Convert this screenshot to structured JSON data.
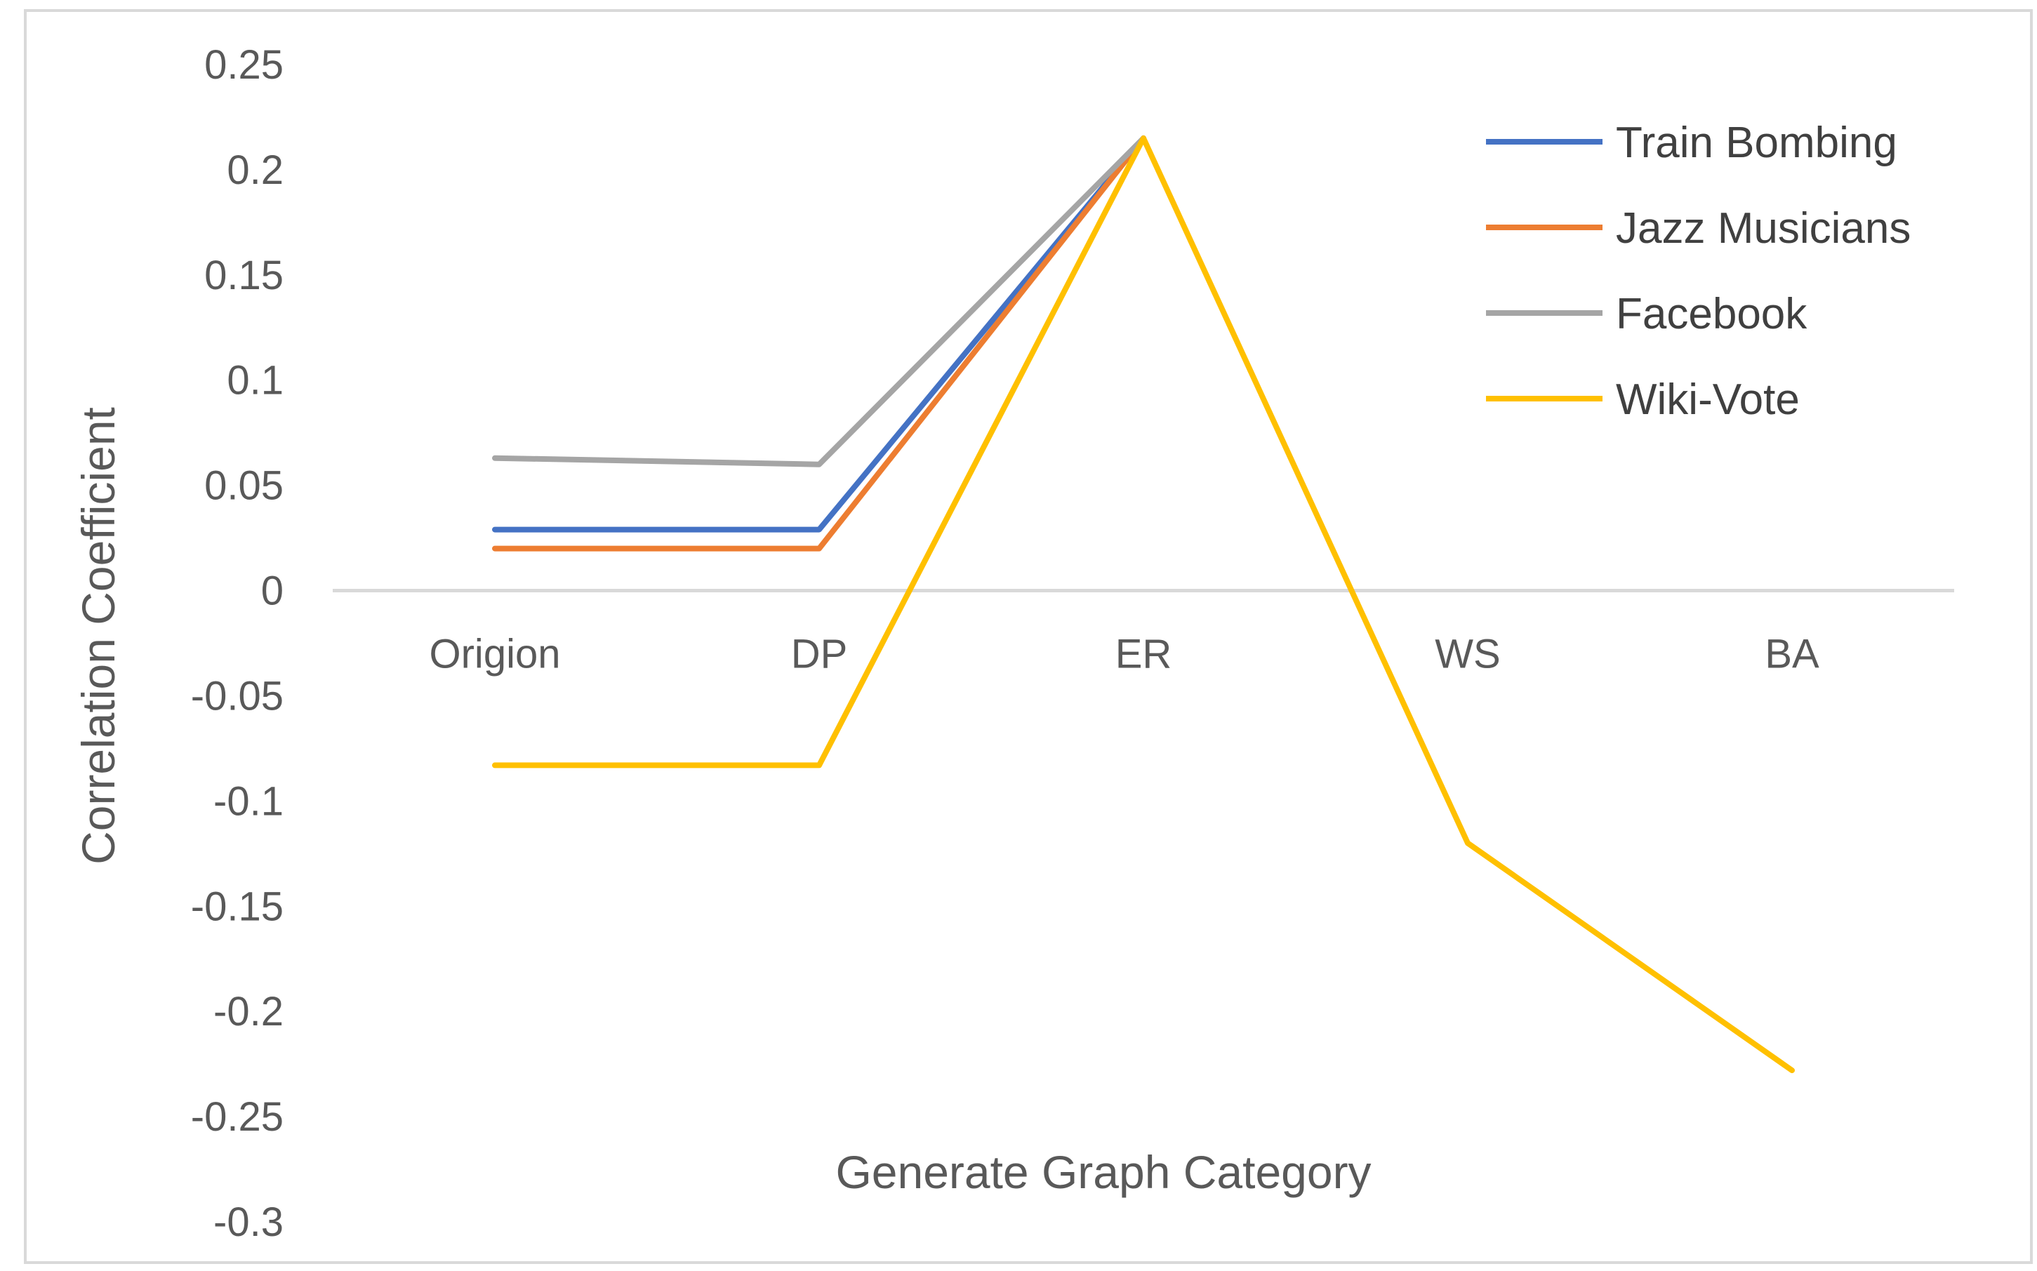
{
  "chart_data": {
    "type": "line",
    "categories": [
      "Origion",
      "DP",
      "ER",
      "WS",
      "BA"
    ],
    "series": [
      {
        "name": "Train Bombing",
        "color": "#4472c4",
        "values": [
          0.029,
          0.029,
          0.215,
          null,
          null
        ]
      },
      {
        "name": "Jazz Musicians",
        "color": "#ed7d31",
        "values": [
          0.02,
          0.02,
          0.215,
          null,
          null
        ]
      },
      {
        "name": "Facebook",
        "color": "#a5a5a5",
        "values": [
          0.063,
          0.06,
          0.215,
          null,
          null
        ]
      },
      {
        "name": "Wiki-Vote",
        "color": "#ffc000",
        "values": [
          -0.083,
          -0.083,
          0.215,
          -0.12,
          -0.228
        ]
      }
    ],
    "title": "",
    "xlabel": "Generate Graph Category",
    "ylabel": "Correlation Coefficient",
    "ylim": [
      -0.3,
      0.25
    ],
    "yticks": [
      "0.25",
      "0.2",
      "0.15",
      "0.1",
      "0.05",
      "0",
      "-0.05",
      "-0.1",
      "-0.15",
      "-0.2",
      "-0.25",
      "-0.3"
    ],
    "grid": false,
    "legend_position": "top-right"
  }
}
